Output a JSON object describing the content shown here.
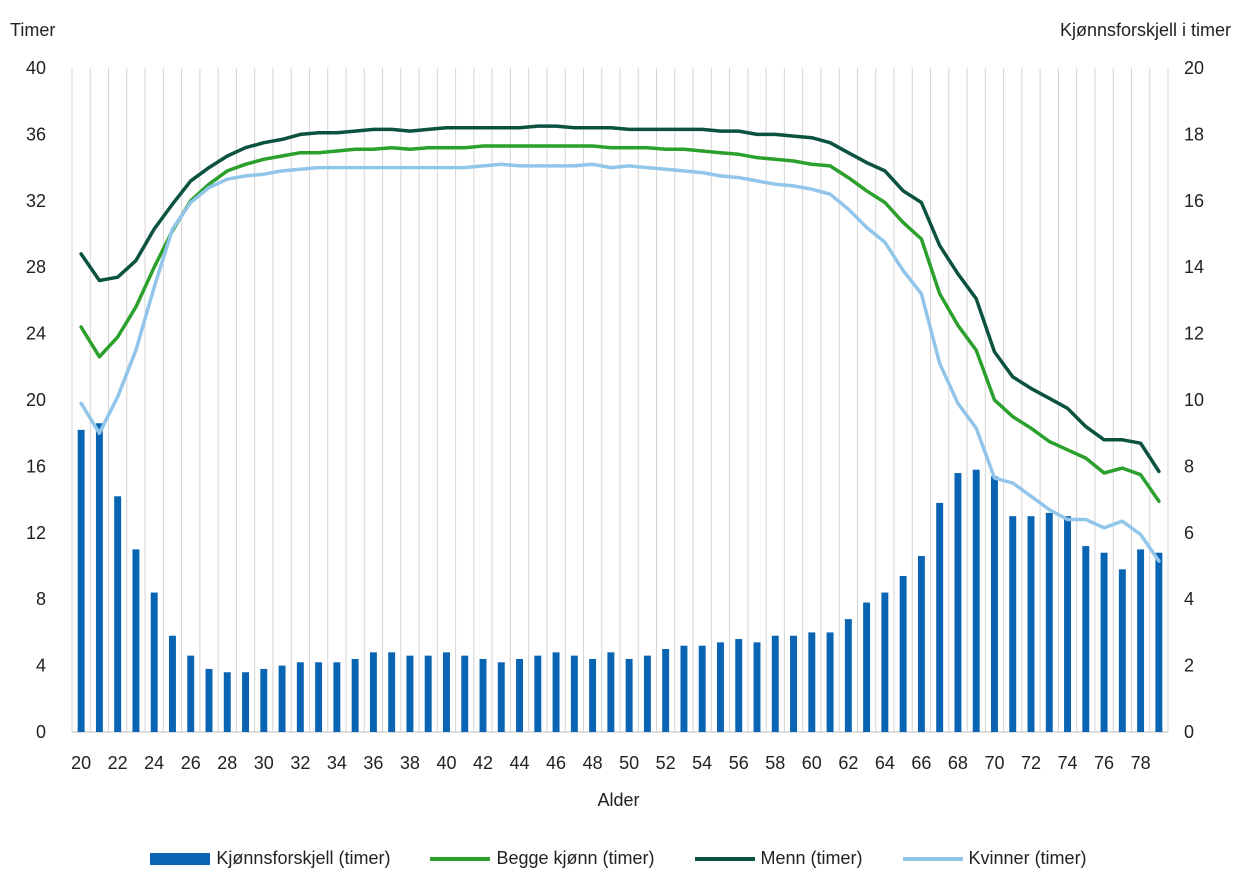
{
  "chart_data": {
    "type": "bar+line",
    "ylabel_left": "Timer",
    "ylabel_right": "Kjønnsforskjell  i timer",
    "xlabel": "Alder",
    "ylim_left": [
      0,
      40
    ],
    "ylim_right": [
      0,
      20
    ],
    "yticks_left": [
      "0",
      "4",
      "8",
      "12",
      "16",
      "20",
      "24",
      "28",
      "32",
      "36",
      "40"
    ],
    "yticks_right": [
      "0",
      "2",
      "4",
      "6",
      "8",
      "10",
      "12",
      "14",
      "16",
      "18",
      "20"
    ],
    "grid": "vertical",
    "legend_position": "bottom",
    "x": [
      20,
      21,
      22,
      23,
      24,
      25,
      26,
      27,
      28,
      29,
      30,
      31,
      32,
      33,
      34,
      35,
      36,
      37,
      38,
      39,
      40,
      41,
      42,
      43,
      44,
      45,
      46,
      47,
      48,
      49,
      50,
      51,
      52,
      53,
      54,
      55,
      56,
      57,
      58,
      59,
      60,
      61,
      62,
      63,
      64,
      65,
      66,
      67,
      68,
      69,
      70,
      71,
      72,
      73,
      74,
      75,
      76,
      77,
      78,
      79
    ],
    "xtick_labels": [
      "20",
      "22",
      "24",
      "26",
      "28",
      "30",
      "32",
      "34",
      "36",
      "38",
      "40",
      "42",
      "44",
      "46",
      "48",
      "50",
      "52",
      "54",
      "56",
      "58",
      "60",
      "62",
      "64",
      "66",
      "68",
      "70",
      "72",
      "74",
      "76",
      "78"
    ],
    "series": [
      {
        "name": "Kjønnsforskjell (timer)",
        "kind": "bar",
        "axis": "right",
        "color": "#0a64b4",
        "values": [
          9.1,
          9.3,
          7.1,
          5.5,
          4.2,
          2.9,
          2.3,
          1.9,
          1.8,
          1.8,
          1.9,
          2.0,
          2.1,
          2.1,
          2.1,
          2.2,
          2.4,
          2.4,
          2.3,
          2.3,
          2.4,
          2.3,
          2.2,
          2.1,
          2.2,
          2.3,
          2.4,
          2.3,
          2.2,
          2.4,
          2.2,
          2.3,
          2.5,
          2.6,
          2.6,
          2.7,
          2.8,
          2.7,
          2.9,
          2.9,
          3.0,
          3.0,
          3.4,
          3.9,
          4.2,
          4.7,
          5.3,
          6.9,
          7.8,
          7.9,
          7.7,
          6.5,
          6.5,
          6.6,
          6.5,
          5.6,
          5.4,
          4.9,
          5.5,
          5.4
        ]
      },
      {
        "name": "Begge kjønn (timer)",
        "kind": "line",
        "axis": "left",
        "color": "#2ca02c",
        "values": [
          24.4,
          22.6,
          23.8,
          25.6,
          28.0,
          30.2,
          32.0,
          33.0,
          33.8,
          34.2,
          34.5,
          34.7,
          34.9,
          34.9,
          35.0,
          35.1,
          35.1,
          35.2,
          35.1,
          35.2,
          35.2,
          35.2,
          35.3,
          35.3,
          35.3,
          35.3,
          35.3,
          35.3,
          35.3,
          35.2,
          35.2,
          35.2,
          35.1,
          35.1,
          35.0,
          34.9,
          34.8,
          34.6,
          34.5,
          34.4,
          34.2,
          34.1,
          33.4,
          32.6,
          31.9,
          30.7,
          29.7,
          26.4,
          24.5,
          23.0,
          20.0,
          19.0,
          18.3,
          17.5,
          17.0,
          16.5,
          15.6,
          15.9,
          15.5,
          13.9
        ]
      },
      {
        "name": "Menn (timer)",
        "kind": "line",
        "axis": "left",
        "color": "#0b5240",
        "values": [
          28.8,
          27.2,
          27.4,
          28.4,
          30.3,
          31.8,
          33.2,
          34.0,
          34.7,
          35.2,
          35.5,
          35.7,
          36.0,
          36.1,
          36.1,
          36.2,
          36.3,
          36.3,
          36.2,
          36.3,
          36.4,
          36.4,
          36.4,
          36.4,
          36.4,
          36.5,
          36.5,
          36.4,
          36.4,
          36.4,
          36.3,
          36.3,
          36.3,
          36.3,
          36.3,
          36.2,
          36.2,
          36.0,
          36.0,
          35.9,
          35.8,
          35.5,
          34.9,
          34.3,
          33.8,
          32.6,
          31.9,
          29.3,
          27.6,
          26.1,
          22.9,
          21.4,
          20.7,
          20.1,
          19.5,
          18.4,
          17.6,
          17.6,
          17.4,
          15.7
        ]
      },
      {
        "name": "Kvinner (timer)",
        "kind": "line",
        "axis": "left",
        "color": "#92c5ea",
        "values": [
          19.8,
          18.0,
          20.2,
          23.0,
          26.8,
          30.3,
          31.9,
          32.8,
          33.3,
          33.5,
          33.6,
          33.8,
          33.9,
          34.0,
          34.0,
          34.0,
          34.0,
          34.0,
          34.0,
          34.0,
          34.0,
          34.0,
          34.1,
          34.2,
          34.1,
          34.1,
          34.1,
          34.1,
          34.2,
          34.0,
          34.1,
          34.0,
          33.9,
          33.8,
          33.7,
          33.5,
          33.4,
          33.2,
          33.0,
          32.9,
          32.7,
          32.4,
          31.5,
          30.4,
          29.5,
          27.8,
          26.4,
          22.2,
          19.8,
          18.3,
          15.3,
          15.0,
          14.2,
          13.4,
          12.8,
          12.8,
          12.3,
          12.7,
          11.9,
          10.3
        ]
      }
    ]
  }
}
